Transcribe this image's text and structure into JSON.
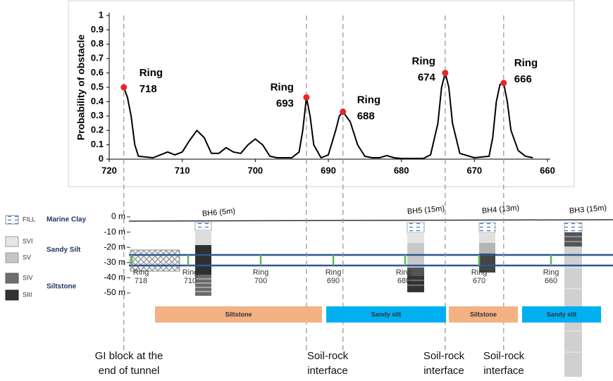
{
  "chart_data": {
    "type": "line",
    "y_label": "Probability of obstacle",
    "x": [
      718,
      717.5,
      717,
      716.5,
      716,
      714,
      713,
      712,
      711,
      710,
      709,
      708,
      707,
      706,
      705,
      704,
      703,
      702,
      701,
      700,
      699,
      698,
      697,
      695,
      694,
      693.5,
      693,
      692.5,
      692,
      691,
      690,
      689,
      688.5,
      688,
      687,
      686,
      685,
      684,
      683,
      682,
      681,
      680,
      677,
      676,
      675,
      674.5,
      674,
      673.5,
      673,
      672,
      670,
      668,
      667.5,
      667,
      666.5,
      666,
      665.5,
      665,
      664,
      663,
      662
    ],
    "series": [
      {
        "color": "#000000",
        "values": [
          0.5,
          0.43,
          0.3,
          0.1,
          0.02,
          0.01,
          0.03,
          0.05,
          0.03,
          0.05,
          0.13,
          0.2,
          0.15,
          0.04,
          0.04,
          0.08,
          0.05,
          0.04,
          0.1,
          0.14,
          0.1,
          0.02,
          0.01,
          0.01,
          0.05,
          0.2,
          0.43,
          0.3,
          0.1,
          0.01,
          0.03,
          0.2,
          0.3,
          0.33,
          0.26,
          0.1,
          0.02,
          0.01,
          0.01,
          0.025,
          0.01,
          0.005,
          0.005,
          0.03,
          0.25,
          0.5,
          0.6,
          0.5,
          0.25,
          0.04,
          0.01,
          0.02,
          0.15,
          0.4,
          0.52,
          0.53,
          0.4,
          0.2,
          0.06,
          0.02,
          0.01
        ]
      }
    ],
    "markers": {
      "color": "#e8262a",
      "x": [
        718,
        693,
        688,
        674,
        666
      ],
      "values": [
        0.5,
        0.43,
        0.33,
        0.6,
        0.53
      ],
      "labels": [
        [
          "Ring",
          "718"
        ],
        [
          "Ring",
          "693"
        ],
        [
          "Ring",
          "688"
        ],
        [
          "Ring",
          "674"
        ],
        [
          "Ring",
          "666"
        ]
      ]
    },
    "xlim": [
      720,
      660
    ],
    "ylim": [
      0,
      1
    ],
    "xticks": [
      720,
      710,
      700,
      690,
      680,
      670,
      660
    ],
    "yticks": [
      0,
      0.1,
      0.2,
      0.3,
      0.4,
      0.5,
      0.6,
      0.7,
      0.8,
      0.9,
      1
    ]
  },
  "profile": {
    "depth_ticks": [
      {
        "value": 0,
        "label": "0 m"
      },
      {
        "value": -10,
        "label": "-10 m"
      },
      {
        "value": -20,
        "label": "-20 m"
      },
      {
        "value": -30,
        "label": "-30 m"
      },
      {
        "value": -40,
        "label": "-40 m"
      },
      {
        "value": -50,
        "label": "-50 m"
      }
    ],
    "legend": {
      "items": [
        "FILL",
        "SVI",
        "SV",
        "SIV",
        "SIII"
      ],
      "groups": [
        "Marine Clay",
        "Sandy Silt",
        "Siltstone"
      ]
    },
    "boreholes": [
      "BH6 (5m)",
      "BH5 (15m)",
      "BH4 (13m)",
      "BH3 (15m)"
    ],
    "rings": [
      [
        "Ring",
        "718"
      ],
      [
        "Ring",
        "710"
      ],
      [
        "Ring",
        "700"
      ],
      [
        "Ring",
        "690"
      ],
      [
        "Ring",
        "680"
      ],
      [
        "Ring",
        "670"
      ],
      [
        "Ring",
        "660"
      ]
    ],
    "strata": [
      {
        "label": "Siltstone",
        "color": "#f4b183"
      },
      {
        "label": "Sandy silt",
        "color": "#00b0f0"
      },
      {
        "label": "Siltstone",
        "color": "#f4b183"
      },
      {
        "label": "Sandy silt",
        "color": "#00b0f0"
      }
    ],
    "annotations": [
      [
        "GI block at the",
        "end of tunnel"
      ],
      [
        "Soil-rock",
        "interface"
      ],
      [
        "Soil-rock",
        "interface"
      ],
      [
        "Soil-rock",
        "interface"
      ]
    ]
  }
}
